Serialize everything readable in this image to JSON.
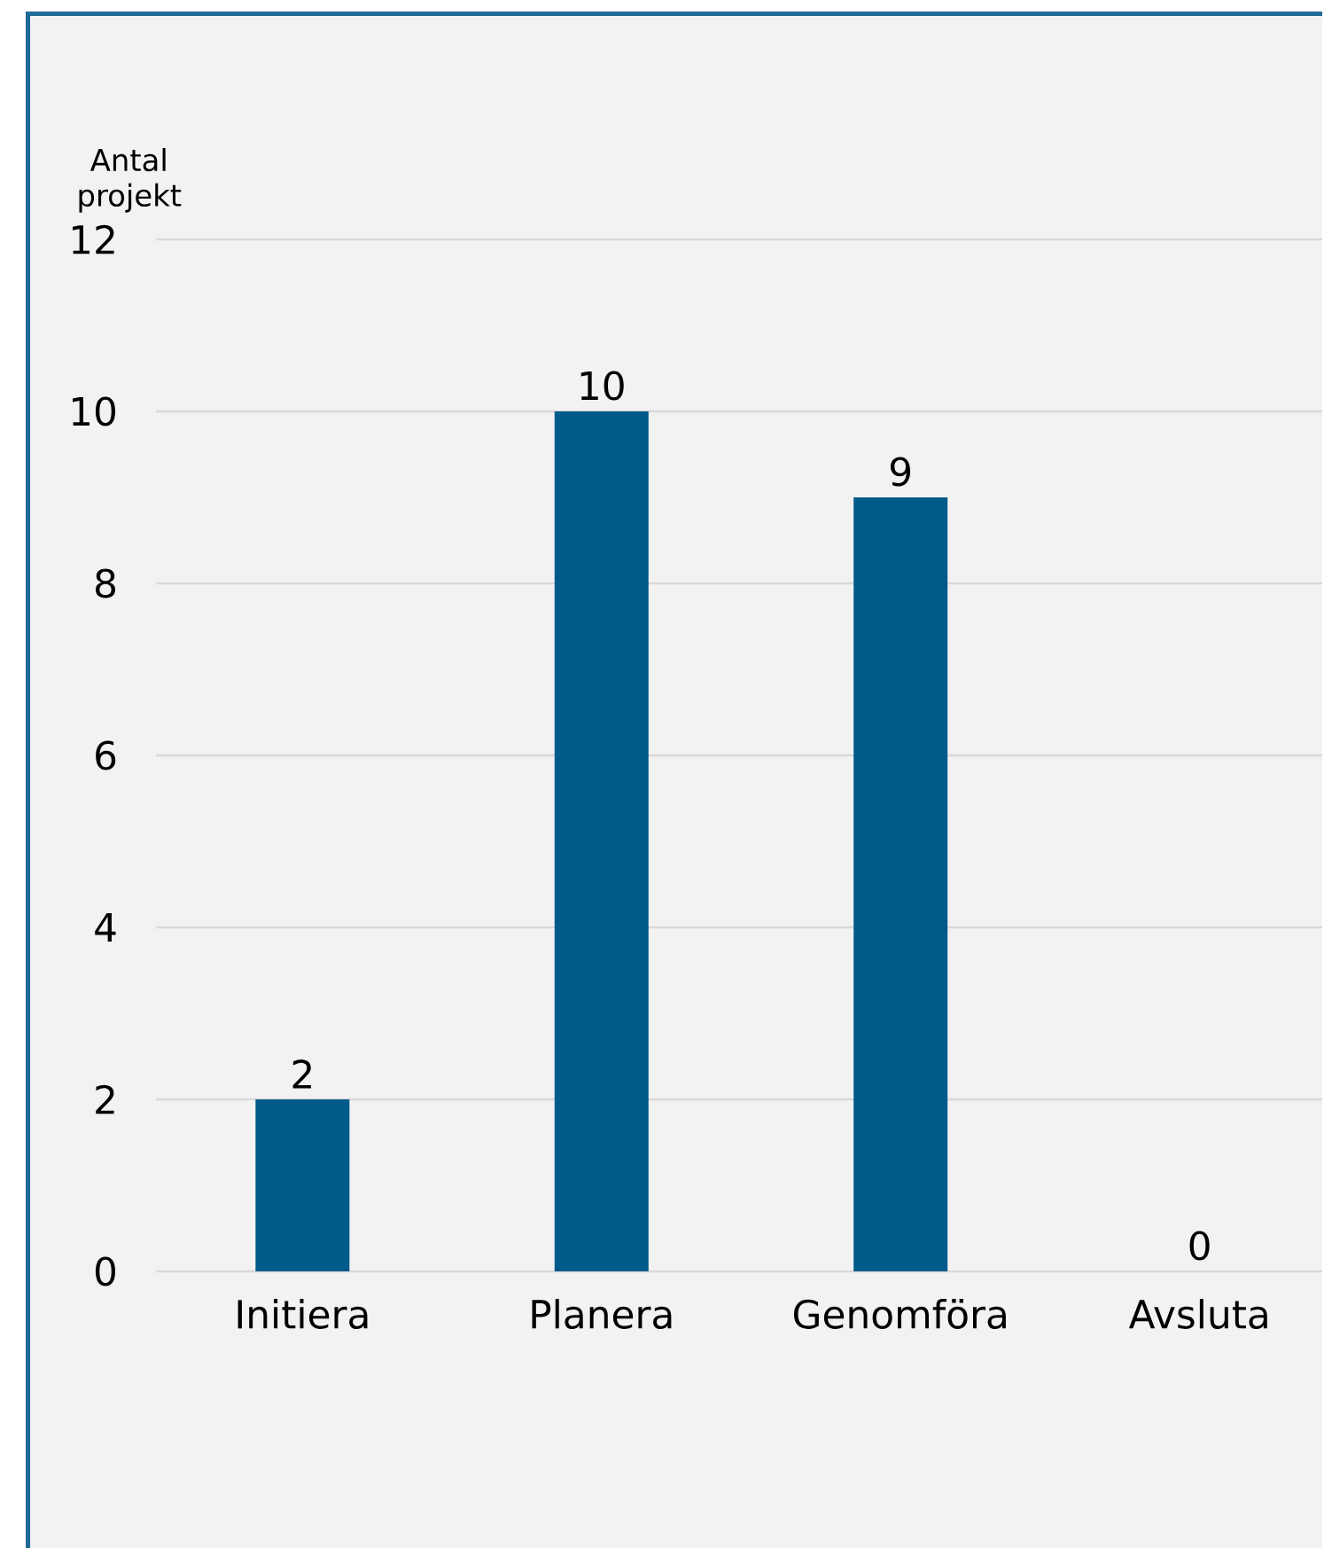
{
  "chart_data": {
    "type": "bar",
    "ylabel": "Antal projekt",
    "categories": [
      "Initiera",
      "Planera",
      "Genomföra",
      "Avsluta"
    ],
    "values": [
      2,
      10,
      9,
      0
    ],
    "color": "#005a8a",
    "ylim": [
      0,
      12
    ],
    "yticks": [
      0,
      2,
      4,
      6,
      8,
      10,
      12
    ],
    "grid": "y",
    "data_labels": true
  }
}
